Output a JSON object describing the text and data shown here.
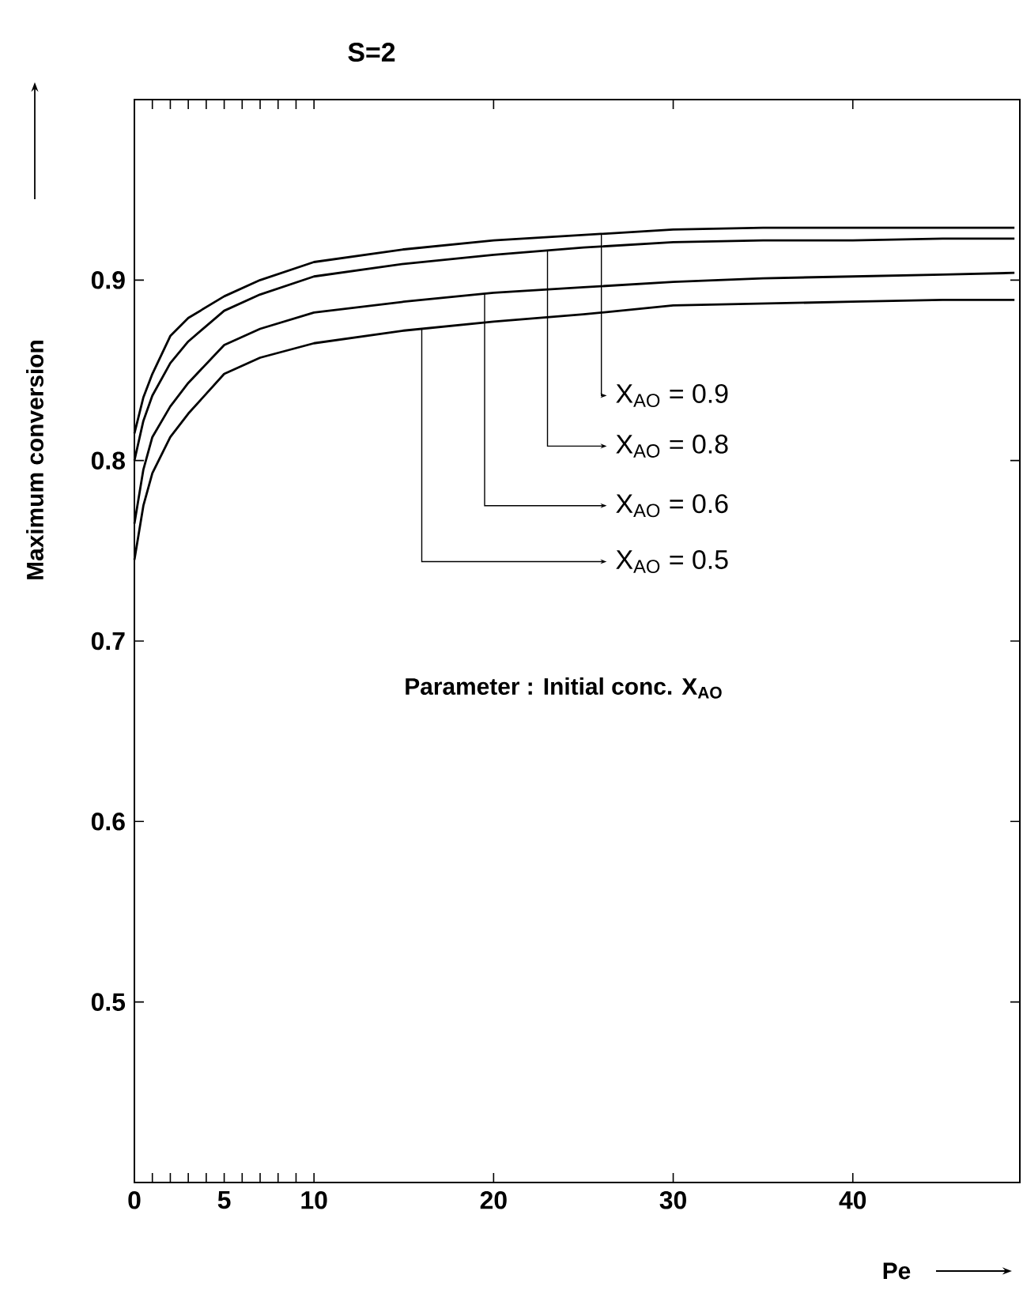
{
  "chart_data": {
    "type": "line",
    "title": "S=2",
    "xlabel": "Pe",
    "ylabel": "Maximum conversion",
    "annotations": [
      "Parameter : Initial conc. X$_{AO}$"
    ],
    "x": [
      0,
      0.5,
      1,
      2,
      3,
      5,
      7,
      10,
      15,
      20,
      25,
      30,
      35,
      40,
      45,
      49
    ],
    "series": [
      {
        "name": "X$_{AO}$ = 0.9",
        "color": "#000000",
        "values": [
          0.815,
          0.835,
          0.848,
          0.869,
          0.879,
          0.891,
          0.9,
          0.91,
          0.917,
          0.922,
          0.925,
          0.928,
          0.929,
          0.929,
          0.929,
          0.929
        ]
      },
      {
        "name": "X$_{AO}$ = 0.8",
        "color": "#000000",
        "values": [
          0.8,
          0.822,
          0.836,
          0.854,
          0.866,
          0.883,
          0.892,
          0.902,
          0.909,
          0.914,
          0.918,
          0.921,
          0.922,
          0.922,
          0.923,
          0.923
        ]
      },
      {
        "name": "X$_{AO}$ = 0.6",
        "color": "#000000",
        "values": [
          0.765,
          0.795,
          0.813,
          0.83,
          0.843,
          0.864,
          0.873,
          0.882,
          0.888,
          0.893,
          0.896,
          0.899,
          0.901,
          0.902,
          0.903,
          0.904
        ]
      },
      {
        "name": "X$_{AO}$ = 0.5",
        "color": "#000000",
        "values": [
          0.745,
          0.775,
          0.793,
          0.813,
          0.826,
          0.848,
          0.857,
          0.865,
          0.872,
          0.877,
          0.881,
          0.886,
          0.887,
          0.888,
          0.889,
          0.889
        ]
      }
    ],
    "xlim": [
      0,
      49.3
    ],
    "ylim": [
      0.4,
      1.0
    ],
    "xticks": [
      0,
      {
        "value": 1,
        "label": null
      },
      {
        "value": 2,
        "label": null
      },
      {
        "value": 3,
        "label": null
      },
      {
        "value": 4,
        "label": null
      },
      5,
      {
        "value": 6,
        "label": null
      },
      {
        "value": 7,
        "label": null
      },
      {
        "value": 8,
        "label": null
      },
      {
        "value": 9,
        "label": null
      },
      10,
      20,
      30,
      40
    ],
    "yticks": [
      0.5,
      0.6,
      0.7,
      0.8,
      0.9
    ],
    "grid": false,
    "legend": "right",
    "marker": "none",
    "line_style": "solid"
  }
}
